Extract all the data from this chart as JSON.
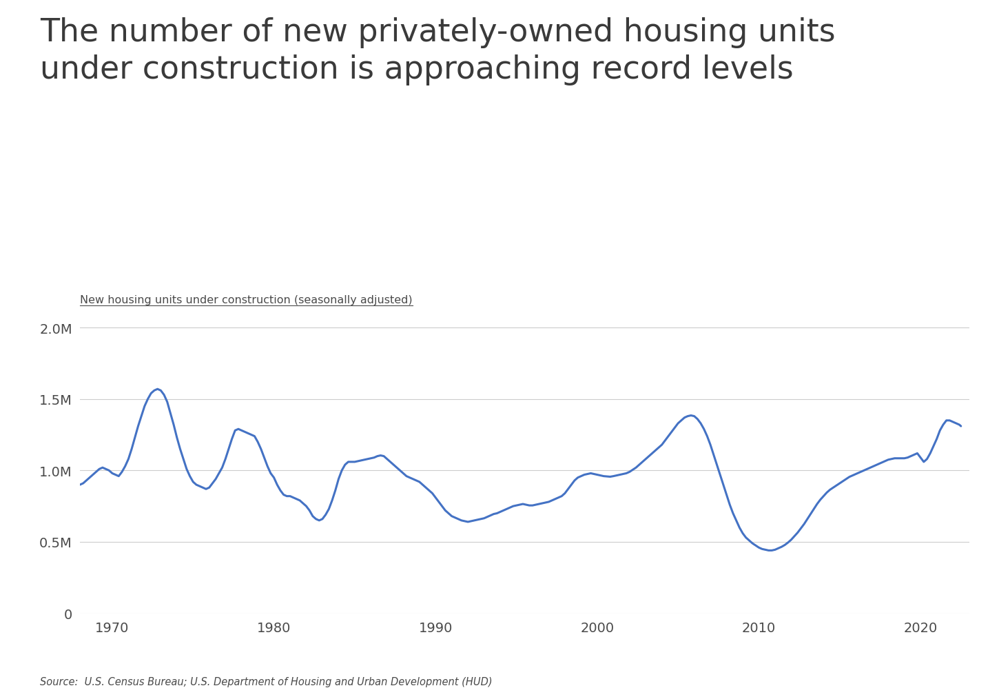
{
  "title_line1": "The number of new privately-owned housing units",
  "title_line2": "under construction is approaching record levels",
  "ylabel": "New housing units under construction (seasonally adjusted)",
  "source": "Source:  U.S. Census Bureau; U.S. Department of Housing and Urban Development (HUD)",
  "line_color": "#4472C4",
  "background_color": "#ffffff",
  "text_color": "#4a4a4a",
  "grid_color": "#cccccc",
  "ylim": [
    0,
    2100000
  ],
  "yticks": [
    0,
    500000,
    1000000,
    1500000,
    2000000
  ],
  "ytick_labels": [
    "0",
    "0.5M",
    "1.0M",
    "1.5M",
    "2.0M"
  ],
  "xticks": [
    1970,
    1980,
    1990,
    2000,
    2010,
    2020
  ],
  "xlim": [
    1968,
    2023
  ],
  "data": [
    [
      1968.0,
      900000
    ],
    [
      1968.2,
      910000
    ],
    [
      1968.4,
      930000
    ],
    [
      1968.6,
      950000
    ],
    [
      1968.8,
      970000
    ],
    [
      1969.0,
      990000
    ],
    [
      1969.2,
      1010000
    ],
    [
      1969.4,
      1020000
    ],
    [
      1969.6,
      1010000
    ],
    [
      1969.8,
      1000000
    ],
    [
      1970.0,
      980000
    ],
    [
      1970.2,
      970000
    ],
    [
      1970.4,
      960000
    ],
    [
      1970.6,
      990000
    ],
    [
      1970.8,
      1030000
    ],
    [
      1971.0,
      1080000
    ],
    [
      1971.2,
      1150000
    ],
    [
      1971.4,
      1230000
    ],
    [
      1971.6,
      1310000
    ],
    [
      1971.8,
      1380000
    ],
    [
      1972.0,
      1450000
    ],
    [
      1972.2,
      1500000
    ],
    [
      1972.4,
      1540000
    ],
    [
      1972.6,
      1560000
    ],
    [
      1972.8,
      1570000
    ],
    [
      1973.0,
      1560000
    ],
    [
      1973.2,
      1530000
    ],
    [
      1973.4,
      1480000
    ],
    [
      1973.6,
      1400000
    ],
    [
      1973.8,
      1320000
    ],
    [
      1974.0,
      1230000
    ],
    [
      1974.2,
      1150000
    ],
    [
      1974.4,
      1080000
    ],
    [
      1974.6,
      1010000
    ],
    [
      1974.8,
      960000
    ],
    [
      1975.0,
      920000
    ],
    [
      1975.2,
      900000
    ],
    [
      1975.4,
      890000
    ],
    [
      1975.6,
      880000
    ],
    [
      1975.8,
      870000
    ],
    [
      1976.0,
      880000
    ],
    [
      1976.2,
      910000
    ],
    [
      1976.4,
      940000
    ],
    [
      1976.6,
      980000
    ],
    [
      1976.8,
      1020000
    ],
    [
      1977.0,
      1080000
    ],
    [
      1977.2,
      1150000
    ],
    [
      1977.4,
      1220000
    ],
    [
      1977.6,
      1280000
    ],
    [
      1977.8,
      1290000
    ],
    [
      1978.0,
      1280000
    ],
    [
      1978.2,
      1270000
    ],
    [
      1978.4,
      1260000
    ],
    [
      1978.6,
      1250000
    ],
    [
      1978.8,
      1240000
    ],
    [
      1979.0,
      1200000
    ],
    [
      1979.2,
      1150000
    ],
    [
      1979.4,
      1090000
    ],
    [
      1979.6,
      1030000
    ],
    [
      1979.8,
      980000
    ],
    [
      1980.0,
      950000
    ],
    [
      1980.2,
      900000
    ],
    [
      1980.4,
      860000
    ],
    [
      1980.6,
      830000
    ],
    [
      1980.8,
      820000
    ],
    [
      1981.0,
      820000
    ],
    [
      1981.2,
      810000
    ],
    [
      1981.4,
      800000
    ],
    [
      1981.6,
      790000
    ],
    [
      1981.8,
      770000
    ],
    [
      1982.0,
      750000
    ],
    [
      1982.2,
      720000
    ],
    [
      1982.4,
      680000
    ],
    [
      1982.6,
      660000
    ],
    [
      1982.8,
      650000
    ],
    [
      1983.0,
      660000
    ],
    [
      1983.2,
      690000
    ],
    [
      1983.4,
      730000
    ],
    [
      1983.6,
      790000
    ],
    [
      1983.8,
      860000
    ],
    [
      1984.0,
      940000
    ],
    [
      1984.2,
      1000000
    ],
    [
      1984.4,
      1040000
    ],
    [
      1984.6,
      1060000
    ],
    [
      1984.8,
      1060000
    ],
    [
      1985.0,
      1060000
    ],
    [
      1985.2,
      1065000
    ],
    [
      1985.4,
      1070000
    ],
    [
      1985.6,
      1075000
    ],
    [
      1985.8,
      1080000
    ],
    [
      1986.0,
      1085000
    ],
    [
      1986.2,
      1090000
    ],
    [
      1986.4,
      1100000
    ],
    [
      1986.6,
      1105000
    ],
    [
      1986.8,
      1100000
    ],
    [
      1987.0,
      1080000
    ],
    [
      1987.2,
      1060000
    ],
    [
      1987.4,
      1040000
    ],
    [
      1987.6,
      1020000
    ],
    [
      1987.8,
      1000000
    ],
    [
      1988.0,
      980000
    ],
    [
      1988.2,
      960000
    ],
    [
      1988.4,
      950000
    ],
    [
      1988.6,
      940000
    ],
    [
      1988.8,
      930000
    ],
    [
      1989.0,
      920000
    ],
    [
      1989.2,
      900000
    ],
    [
      1989.4,
      880000
    ],
    [
      1989.6,
      860000
    ],
    [
      1989.8,
      840000
    ],
    [
      1990.0,
      810000
    ],
    [
      1990.2,
      780000
    ],
    [
      1990.4,
      750000
    ],
    [
      1990.6,
      720000
    ],
    [
      1990.8,
      700000
    ],
    [
      1991.0,
      680000
    ],
    [
      1991.2,
      670000
    ],
    [
      1991.4,
      660000
    ],
    [
      1991.6,
      650000
    ],
    [
      1991.8,
      645000
    ],
    [
      1992.0,
      640000
    ],
    [
      1992.2,
      645000
    ],
    [
      1992.4,
      650000
    ],
    [
      1992.6,
      655000
    ],
    [
      1992.8,
      660000
    ],
    [
      1993.0,
      665000
    ],
    [
      1993.2,
      675000
    ],
    [
      1993.4,
      685000
    ],
    [
      1993.6,
      695000
    ],
    [
      1993.8,
      700000
    ],
    [
      1994.0,
      710000
    ],
    [
      1994.2,
      720000
    ],
    [
      1994.4,
      730000
    ],
    [
      1994.6,
      740000
    ],
    [
      1994.8,
      750000
    ],
    [
      1995.0,
      755000
    ],
    [
      1995.2,
      760000
    ],
    [
      1995.4,
      765000
    ],
    [
      1995.6,
      760000
    ],
    [
      1995.8,
      755000
    ],
    [
      1996.0,
      755000
    ],
    [
      1996.2,
      760000
    ],
    [
      1996.4,
      765000
    ],
    [
      1996.6,
      770000
    ],
    [
      1996.8,
      775000
    ],
    [
      1997.0,
      780000
    ],
    [
      1997.2,
      790000
    ],
    [
      1997.4,
      800000
    ],
    [
      1997.6,
      810000
    ],
    [
      1997.8,
      820000
    ],
    [
      1998.0,
      840000
    ],
    [
      1998.2,
      870000
    ],
    [
      1998.4,
      900000
    ],
    [
      1998.6,
      930000
    ],
    [
      1998.8,
      950000
    ],
    [
      1999.0,
      960000
    ],
    [
      1999.2,
      970000
    ],
    [
      1999.4,
      975000
    ],
    [
      1999.6,
      980000
    ],
    [
      1999.8,
      975000
    ],
    [
      2000.0,
      970000
    ],
    [
      2000.2,
      965000
    ],
    [
      2000.4,
      960000
    ],
    [
      2000.6,
      958000
    ],
    [
      2000.8,
      956000
    ],
    [
      2001.0,
      960000
    ],
    [
      2001.2,
      965000
    ],
    [
      2001.4,
      970000
    ],
    [
      2001.6,
      975000
    ],
    [
      2001.8,
      980000
    ],
    [
      2002.0,
      990000
    ],
    [
      2002.2,
      1005000
    ],
    [
      2002.4,
      1020000
    ],
    [
      2002.6,
      1040000
    ],
    [
      2002.8,
      1060000
    ],
    [
      2003.0,
      1080000
    ],
    [
      2003.2,
      1100000
    ],
    [
      2003.4,
      1120000
    ],
    [
      2003.6,
      1140000
    ],
    [
      2003.8,
      1160000
    ],
    [
      2004.0,
      1180000
    ],
    [
      2004.2,
      1210000
    ],
    [
      2004.4,
      1240000
    ],
    [
      2004.6,
      1270000
    ],
    [
      2004.8,
      1300000
    ],
    [
      2005.0,
      1330000
    ],
    [
      2005.2,
      1350000
    ],
    [
      2005.4,
      1370000
    ],
    [
      2005.6,
      1380000
    ],
    [
      2005.8,
      1385000
    ],
    [
      2006.0,
      1380000
    ],
    [
      2006.2,
      1360000
    ],
    [
      2006.4,
      1330000
    ],
    [
      2006.6,
      1290000
    ],
    [
      2006.8,
      1240000
    ],
    [
      2007.0,
      1180000
    ],
    [
      2007.2,
      1110000
    ],
    [
      2007.4,
      1040000
    ],
    [
      2007.6,
      970000
    ],
    [
      2007.8,
      900000
    ],
    [
      2008.0,
      830000
    ],
    [
      2008.2,
      760000
    ],
    [
      2008.4,
      700000
    ],
    [
      2008.6,
      650000
    ],
    [
      2008.8,
      600000
    ],
    [
      2009.0,
      560000
    ],
    [
      2009.2,
      530000
    ],
    [
      2009.4,
      510000
    ],
    [
      2009.6,
      490000
    ],
    [
      2009.8,
      475000
    ],
    [
      2010.0,
      460000
    ],
    [
      2010.2,
      450000
    ],
    [
      2010.4,
      445000
    ],
    [
      2010.6,
      440000
    ],
    [
      2010.8,
      440000
    ],
    [
      2011.0,
      445000
    ],
    [
      2011.2,
      455000
    ],
    [
      2011.4,
      465000
    ],
    [
      2011.6,
      478000
    ],
    [
      2011.8,
      495000
    ],
    [
      2012.0,
      515000
    ],
    [
      2012.2,
      540000
    ],
    [
      2012.4,
      565000
    ],
    [
      2012.6,
      595000
    ],
    [
      2012.8,
      625000
    ],
    [
      2013.0,
      660000
    ],
    [
      2013.2,
      695000
    ],
    [
      2013.4,
      730000
    ],
    [
      2013.6,
      765000
    ],
    [
      2013.8,
      795000
    ],
    [
      2014.0,
      820000
    ],
    [
      2014.2,
      845000
    ],
    [
      2014.4,
      865000
    ],
    [
      2014.6,
      880000
    ],
    [
      2014.8,
      895000
    ],
    [
      2015.0,
      910000
    ],
    [
      2015.2,
      925000
    ],
    [
      2015.4,
      940000
    ],
    [
      2015.6,
      955000
    ],
    [
      2015.8,
      965000
    ],
    [
      2016.0,
      975000
    ],
    [
      2016.2,
      985000
    ],
    [
      2016.4,
      995000
    ],
    [
      2016.6,
      1005000
    ],
    [
      2016.8,
      1015000
    ],
    [
      2017.0,
      1025000
    ],
    [
      2017.2,
      1035000
    ],
    [
      2017.4,
      1045000
    ],
    [
      2017.6,
      1055000
    ],
    [
      2017.8,
      1065000
    ],
    [
      2018.0,
      1075000
    ],
    [
      2018.2,
      1080000
    ],
    [
      2018.4,
      1085000
    ],
    [
      2018.6,
      1085000
    ],
    [
      2018.8,
      1085000
    ],
    [
      2019.0,
      1085000
    ],
    [
      2019.2,
      1090000
    ],
    [
      2019.4,
      1100000
    ],
    [
      2019.6,
      1110000
    ],
    [
      2019.8,
      1120000
    ],
    [
      2020.0,
      1090000
    ],
    [
      2020.2,
      1060000
    ],
    [
      2020.4,
      1080000
    ],
    [
      2020.6,
      1120000
    ],
    [
      2020.8,
      1170000
    ],
    [
      2021.0,
      1220000
    ],
    [
      2021.2,
      1280000
    ],
    [
      2021.4,
      1320000
    ],
    [
      2021.6,
      1350000
    ],
    [
      2021.8,
      1350000
    ],
    [
      2022.0,
      1340000
    ],
    [
      2022.2,
      1330000
    ],
    [
      2022.4,
      1320000
    ],
    [
      2022.5,
      1310000
    ]
  ]
}
